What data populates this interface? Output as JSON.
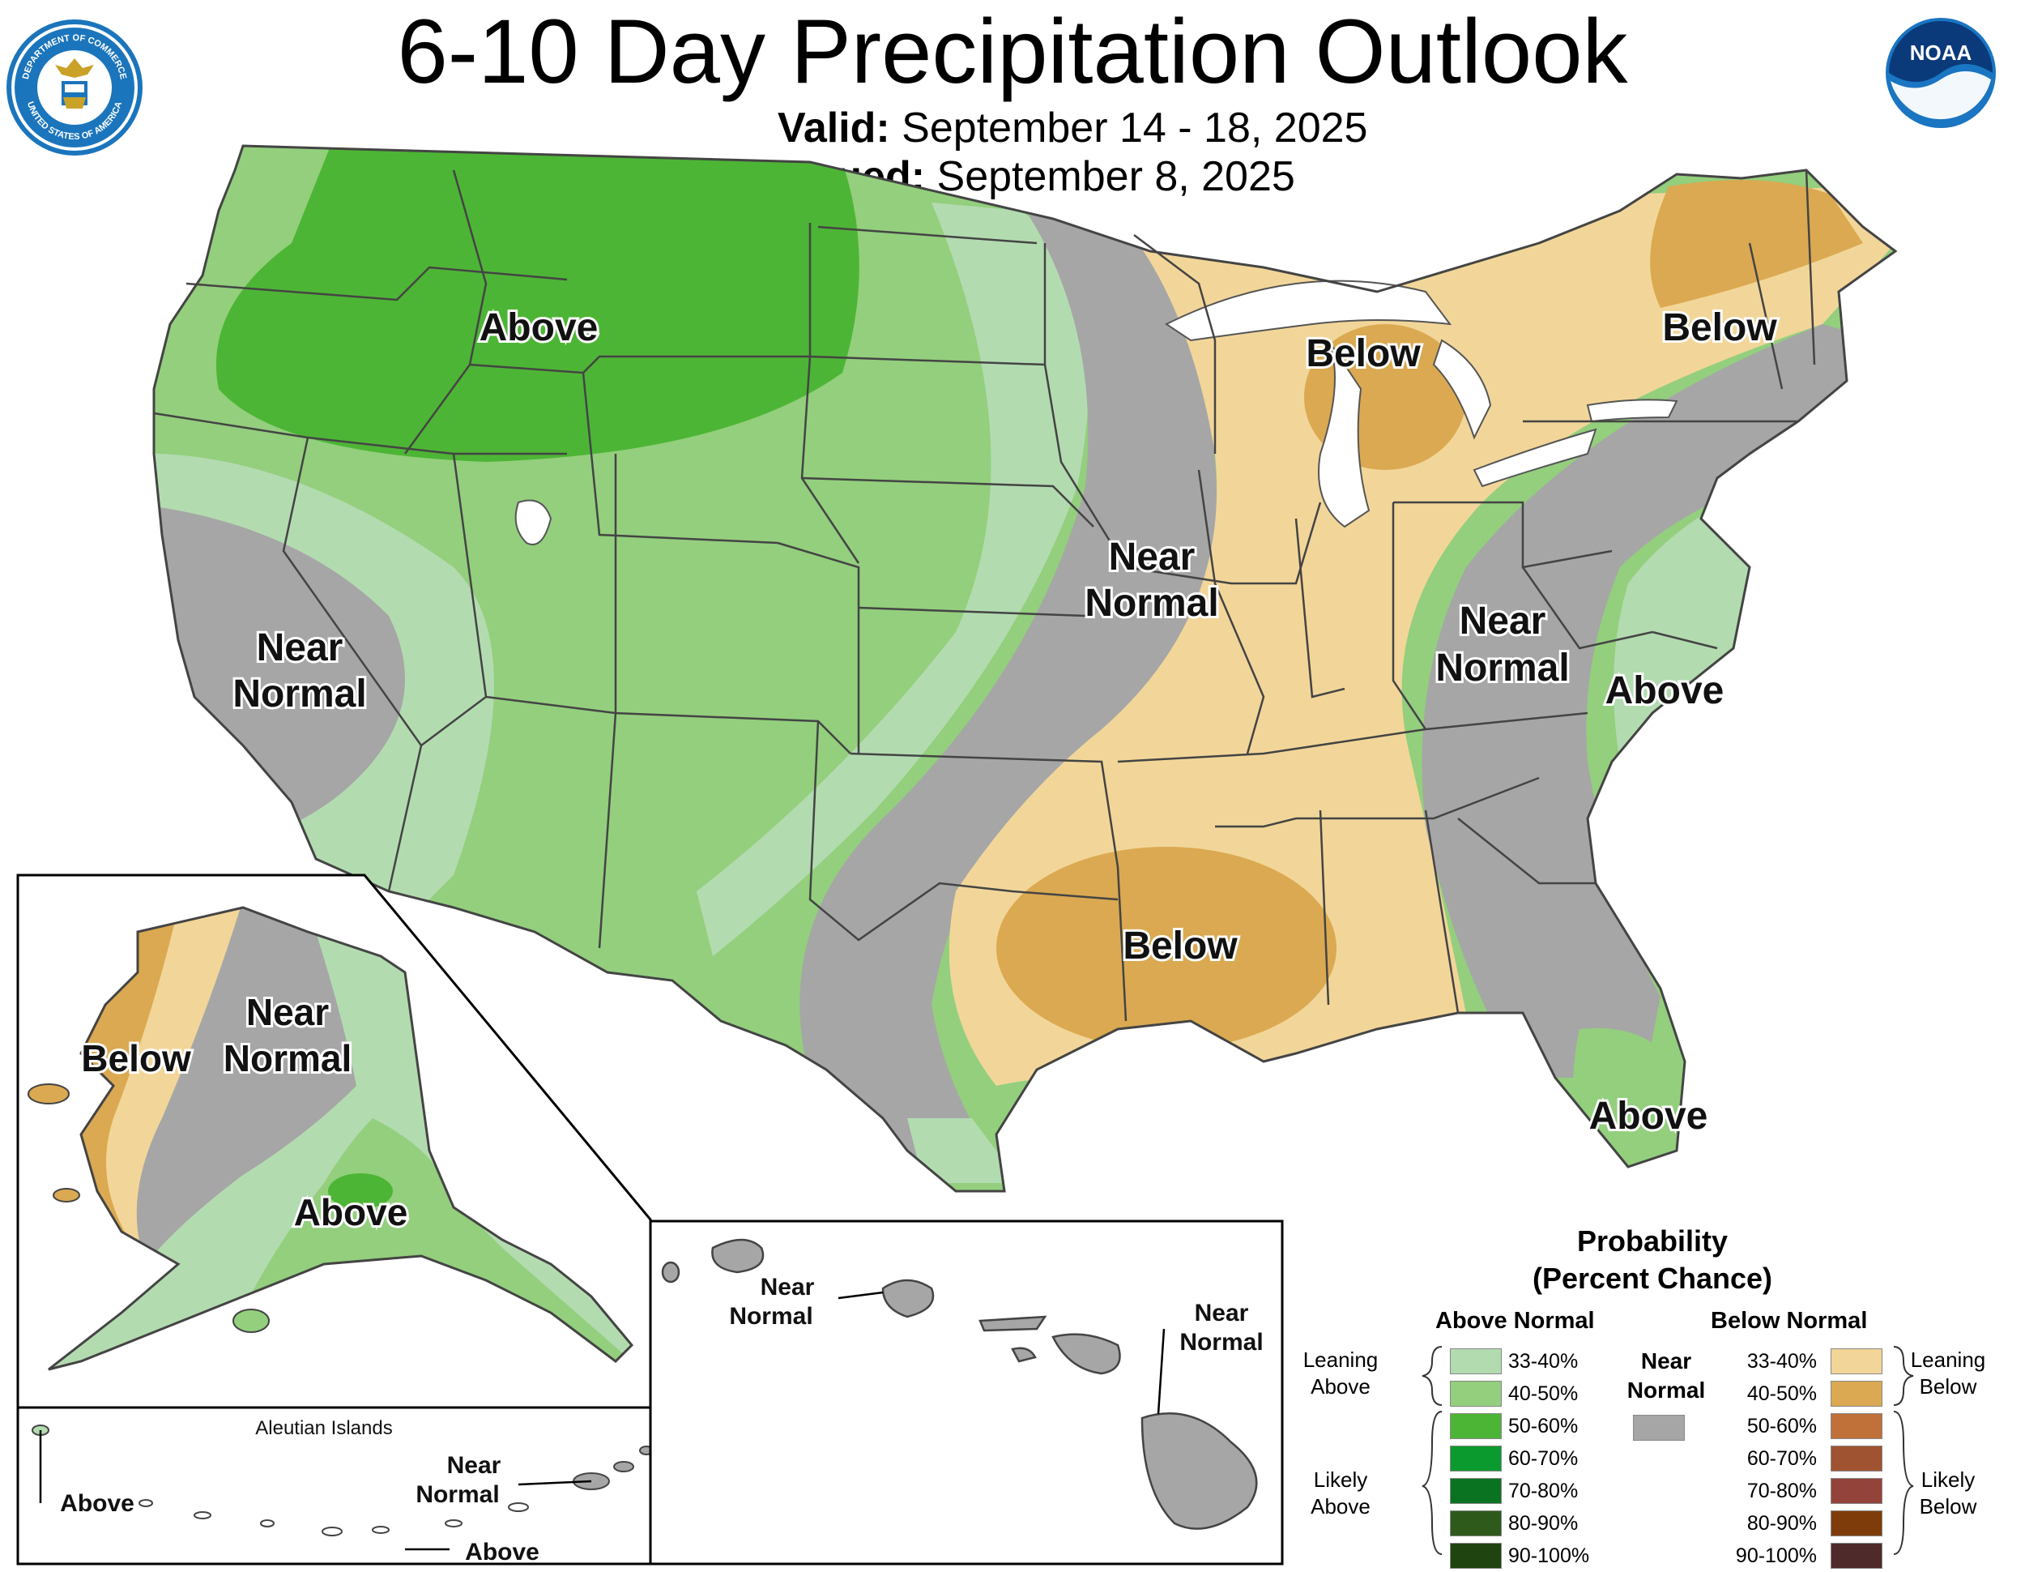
{
  "header": {
    "title": "6-10 Day Precipitation Outlook",
    "valid_label": "Valid:",
    "valid_value": "September 14 - 18, 2025",
    "issued_label": "Issued:",
    "issued_value": "September 8, 2025"
  },
  "logos": {
    "seal_text_top": "DEPARTMENT OF COMMERCE",
    "seal_text_bottom": "UNITED STATES OF AMERICA",
    "noaa_text": "NOAA"
  },
  "map_labels": {
    "northwest": "Above",
    "california_1": "Near",
    "california_2": "Normal",
    "plains_1": "Near",
    "plains_2": "Normal",
    "great_lakes": "Below",
    "new_england": "Below",
    "appalachia_1": "Near",
    "appalachia_2": "Normal",
    "mid_atlantic": "Above",
    "gulf": "Below",
    "florida": "Above",
    "ak_west": "Below",
    "ak_central_1": "Near",
    "ak_central_2": "Normal",
    "ak_south": "Above",
    "aleutian_title": "Aleutian Islands",
    "aleutian_west": "Above",
    "aleutian_east_1": "Near",
    "aleutian_east_2": "Normal",
    "aleutian_south": "Above",
    "hawaii_west_1": "Near",
    "hawaii_west_2": "Normal",
    "hawaii_east_1": "Near",
    "hawaii_east_2": "Normal"
  },
  "legend": {
    "title_1": "Probability",
    "title_2": "(Percent Chance)",
    "above_header": "Above Normal",
    "below_header": "Below Normal",
    "near_1": "Near",
    "near_2": "Normal",
    "leaning_above_1": "Leaning",
    "leaning_above_2": "Above",
    "likely_above_1": "Likely",
    "likely_above_2": "Above",
    "leaning_below_1": "Leaning",
    "leaning_below_2": "Below",
    "likely_below_1": "Likely",
    "likely_below_2": "Below",
    "near_color": "#a6a6a6",
    "above": [
      {
        "label": "33-40%",
        "color": "#b3dbb0"
      },
      {
        "label": "40-50%",
        "color": "#93cf7d"
      },
      {
        "label": "50-60%",
        "color": "#4db535"
      },
      {
        "label": "60-70%",
        "color": "#0b9a2d"
      },
      {
        "label": "70-80%",
        "color": "#0a7322"
      },
      {
        "label": "80-90%",
        "color": "#2e5a1c"
      },
      {
        "label": "90-100%",
        "color": "#1f4410"
      }
    ],
    "below": [
      {
        "label": "33-40%",
        "color": "#f2d699"
      },
      {
        "label": "40-50%",
        "color": "#dba951"
      },
      {
        "label": "50-60%",
        "color": "#c0713a"
      },
      {
        "label": "60-70%",
        "color": "#a05330"
      },
      {
        "label": "70-80%",
        "color": "#94433a"
      },
      {
        "label": "80-90%",
        "color": "#7e3c0a"
      },
      {
        "label": "90-100%",
        "color": "#4e2a2a"
      }
    ]
  }
}
